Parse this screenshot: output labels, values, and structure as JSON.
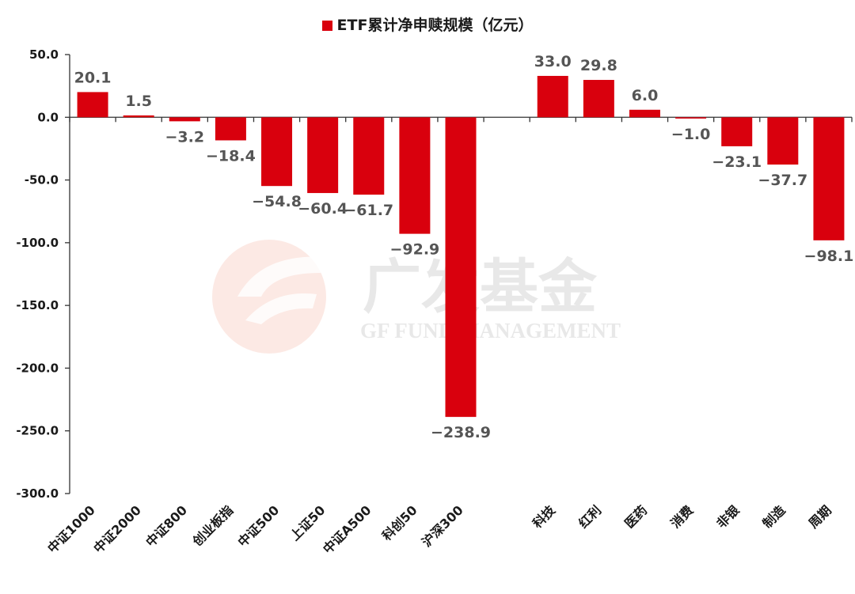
{
  "chart_data": {
    "type": "bar",
    "legend": [
      {
        "name": "ETF累计净申赎规模（亿元）",
        "color": "#d9000d"
      }
    ],
    "categories": [
      "中证1000",
      "中证2000",
      "中证800",
      "创业板指",
      "中证500",
      "上证50",
      "中证A500",
      "科创50",
      "沪深300",
      "",
      "科技",
      "红利",
      "医药",
      "消费",
      "非银",
      "制造",
      "周期"
    ],
    "series": [
      {
        "name": "ETF累计净申赎规模（亿元）",
        "values": [
          20.1,
          1.5,
          -3.2,
          -18.4,
          -54.8,
          -60.4,
          -61.7,
          -92.9,
          -238.9,
          null,
          33.0,
          29.8,
          6.0,
          -1.0,
          -23.1,
          -37.7,
          -98.1
        ],
        "labels": [
          "20.1",
          "1.5",
          "−3.2",
          "−18.4",
          "−54.8",
          "−60.4",
          "−61.7",
          "−92.9",
          "−238.9",
          "",
          "33.0",
          "29.8",
          "6.0",
          "−1.0",
          "−23.1",
          "−37.7",
          "−98.1"
        ]
      }
    ],
    "ylim": [
      -300,
      50
    ],
    "yticks": [
      50,
      0,
      -50,
      -100,
      -150,
      -200,
      -250,
      -300
    ],
    "ytick_labels": [
      "50.0",
      "0.0",
      "-50.0",
      "-100.0",
      "-150.0",
      "-200.0",
      "-250.0",
      "-300.0"
    ],
    "bar_color": "#d9000d",
    "grid": false,
    "legend_position": "top-center"
  },
  "watermark": {
    "cn": "广发基金",
    "en": "GF FUND MANAGEMENT"
  }
}
